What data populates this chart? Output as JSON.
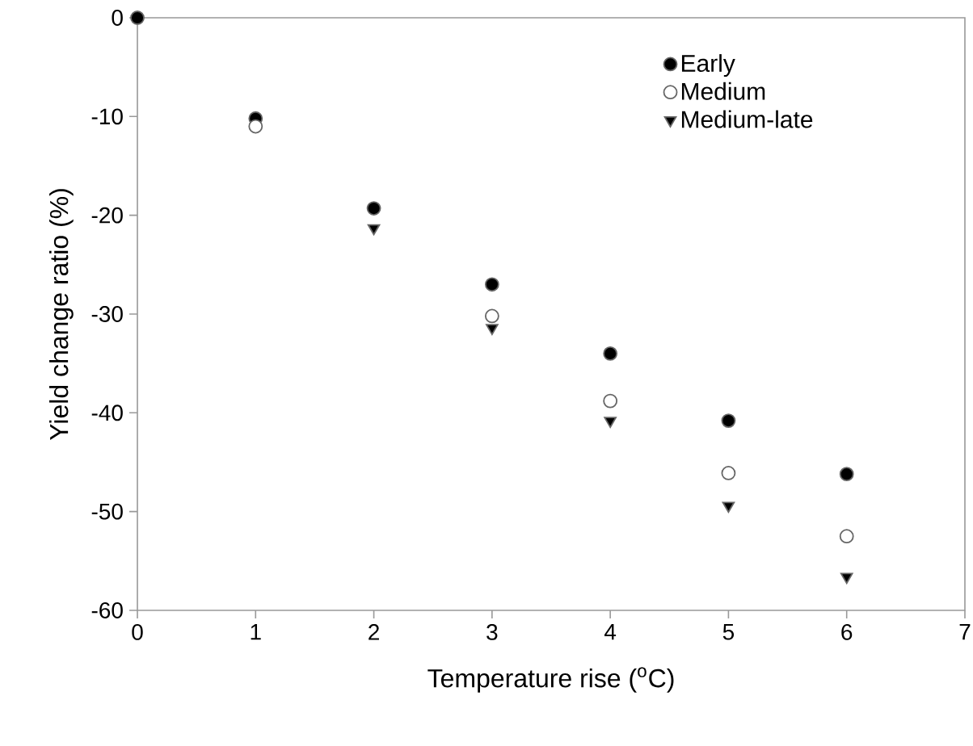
{
  "chart_data": {
    "type": "scatter",
    "xlabel": "Temperature rise ($^{o}$C)",
    "ylabel": "Yield change ratio (%)",
    "x": [
      0,
      1,
      2,
      3,
      4,
      5,
      6
    ],
    "series": [
      {
        "name": "Early",
        "color": "#000000",
        "marker": "circle",
        "values": [
          0,
          -10.2,
          -19.3,
          -27.0,
          -34.0,
          -40.8,
          -46.2
        ]
      },
      {
        "name": "Medium",
        "color": "#ffffff",
        "marker": "circle",
        "values": [
          null,
          -11.0,
          null,
          -30.2,
          -38.8,
          -46.1,
          -52.5
        ]
      },
      {
        "name": "Medium-late",
        "color": "#000000",
        "marker": "triangle",
        "values": [
          null,
          null,
          -21.3,
          -31.4,
          -40.8,
          -49.4,
          -56.6
        ]
      }
    ],
    "xlim": [
      0,
      7
    ],
    "ylim": [
      -60,
      0
    ],
    "xticks": [
      0,
      1,
      2,
      3,
      4,
      5,
      6,
      7
    ],
    "yticks": [
      -60,
      -50,
      -40,
      -30,
      -20,
      -10,
      0
    ],
    "grid": false,
    "legend": "top right"
  }
}
